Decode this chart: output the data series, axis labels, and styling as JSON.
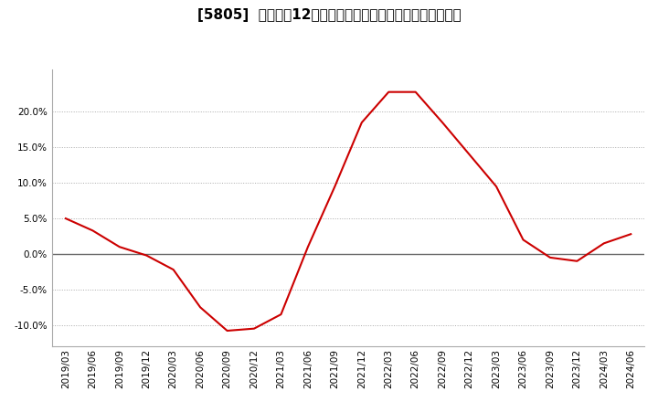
{
  "title": "[5805]  売上高の12か月移動合計の対前年同期増減率の推移",
  "title_fontsize": 11,
  "line_color": "#cc0000",
  "background_color": "#ffffff",
  "plot_bg_color": "#ffffff",
  "ylim": [
    -0.13,
    0.26
  ],
  "yticks": [
    -0.1,
    -0.05,
    0.0,
    0.05,
    0.1,
    0.15,
    0.2
  ],
  "dates": [
    "2019/03",
    "2019/06",
    "2019/09",
    "2019/12",
    "2020/03",
    "2020/06",
    "2020/09",
    "2020/12",
    "2021/03",
    "2021/06",
    "2021/09",
    "2021/12",
    "2022/03",
    "2022/06",
    "2022/09",
    "2022/12",
    "2023/03",
    "2023/06",
    "2023/09",
    "2023/12",
    "2024/03",
    "2024/06"
  ],
  "values": [
    0.05,
    0.033,
    0.01,
    -0.002,
    -0.022,
    -0.075,
    -0.108,
    -0.105,
    -0.085,
    0.01,
    0.095,
    0.185,
    0.228,
    0.228,
    0.185,
    0.14,
    0.095,
    0.02,
    -0.005,
    -0.01,
    0.015,
    0.028
  ],
  "grid_color": "#aaaaaa",
  "zero_line_color": "#666666",
  "tick_fontsize": 7.5
}
